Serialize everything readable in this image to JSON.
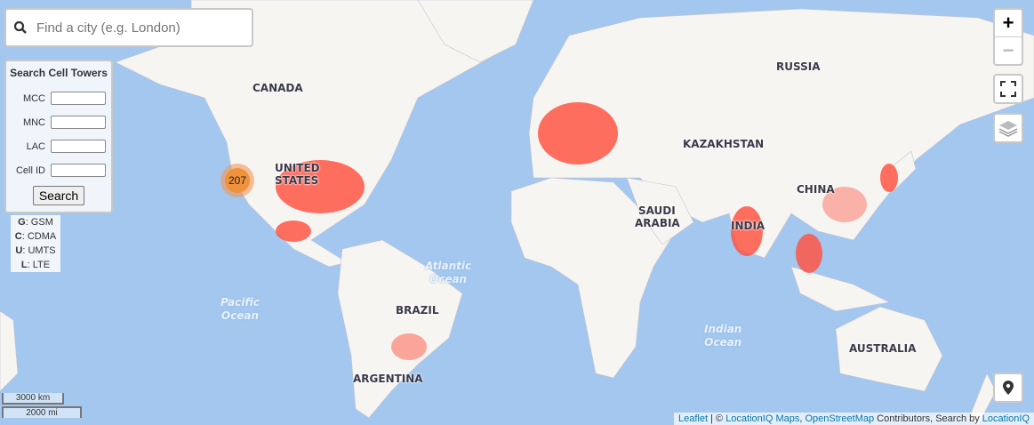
{
  "search": {
    "placeholder": "Find a city (e.g. London)"
  },
  "panel": {
    "title": "Search Cell Towers",
    "fields": [
      {
        "label": "MCC",
        "value": ""
      },
      {
        "label": "MNC",
        "value": ""
      },
      {
        "label": "LAC",
        "value": ""
      },
      {
        "label": "Cell ID",
        "value": ""
      }
    ],
    "button": "Search"
  },
  "legend": [
    {
      "key": "G",
      "label": ": GSM"
    },
    {
      "key": "C",
      "label": ": CDMA"
    },
    {
      "key": "U",
      "label": ": UMTS"
    },
    {
      "key": "L",
      "label": ": LTE"
    }
  ],
  "cluster": {
    "count": "207"
  },
  "zoom": {
    "in": "+",
    "out": "−"
  },
  "labels": {
    "canada": "CANADA",
    "usa1": "UNITED",
    "usa2": "STATES",
    "russia": "RUSSIA",
    "kazakhstan": "KAZAKHSTAN",
    "china": "CHINA",
    "saudi1": "SAUDI",
    "saudi2": "ARABIA",
    "india": "INDIA",
    "brazil": "BRAZIL",
    "argentina": "ARGENTINA",
    "australia": "AUSTRALIA"
  },
  "oceans": {
    "atlantic1": "Atlantic",
    "atlantic2": "Ocean",
    "pacific1": "Pacific",
    "pacific2": "Ocean",
    "indian1": "Indian",
    "indian2": "Ocean"
  },
  "scale": {
    "km": "3000 km",
    "mi": "2000 mi"
  },
  "attribution": {
    "leaflet": "Leaflet",
    "sep": " | © ",
    "liq_maps": "LocationIQ Maps",
    "comma": ", ",
    "osm": "OpenStreetMap",
    "contrib": " Contributors, Search by ",
    "liq": "LocationIQ"
  },
  "colors": {
    "water": "#a3c7ef",
    "land": "#f7f5f2",
    "towers": "#ff5040",
    "cluster": "#f0913c"
  }
}
